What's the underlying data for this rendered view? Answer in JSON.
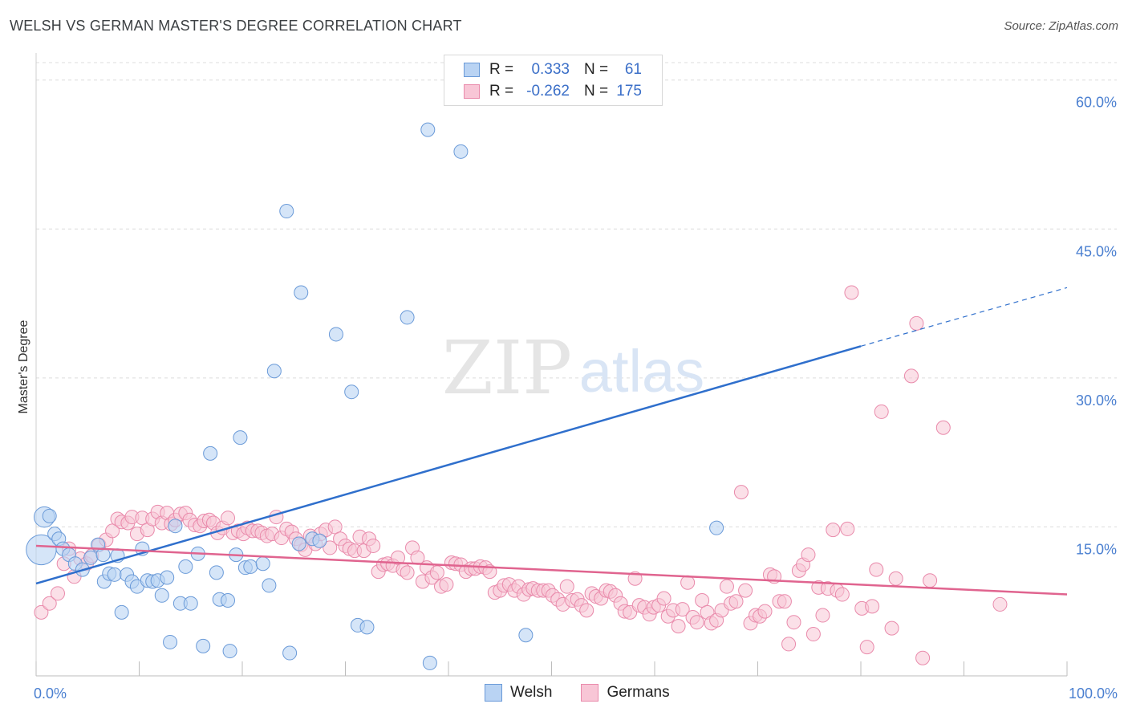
{
  "header": {
    "title": "WELSH VS GERMAN MASTER'S DEGREE CORRELATION CHART",
    "source": "Source: ZipAtlas.com"
  },
  "watermark": {
    "zip": "ZIP",
    "atlas": "atlas"
  },
  "legend": {
    "welsh": {
      "r_label": "R =",
      "r_value": "0.333",
      "n_label": "N =",
      "n_value": "61"
    },
    "germans": {
      "r_label": "R =",
      "r_value": "-0.262",
      "n_label": "N =",
      "n_value": "175"
    }
  },
  "bottom_legend": {
    "welsh": "Welsh",
    "germans": "Germans"
  },
  "colors": {
    "welsh_fill": "#b9d3f3",
    "welsh_stroke": "#6a9ad8",
    "welsh_line": "#2f6fcc",
    "germans_fill": "#f8c6d6",
    "germans_stroke": "#e98aab",
    "germans_line": "#e0648f",
    "tick_text": "#4a7fd0",
    "grid": "#dcdcdc"
  },
  "chart_data": {
    "type": "scatter",
    "title": "WELSH VS GERMAN MASTER'S DEGREE CORRELATION CHART",
    "xlabel": "",
    "ylabel": "Master's Degree",
    "xlim": [
      0,
      100
    ],
    "ylim": [
      0,
      62
    ],
    "x_tick_labels": [
      "0.0%",
      "100.0%"
    ],
    "y_ticks": [
      15,
      30,
      45,
      60
    ],
    "y_tick_labels": [
      "15.0%",
      "30.0%",
      "45.0%",
      "60.0%"
    ],
    "grid": true,
    "legend_position": "top-center",
    "series": [
      {
        "name": "Welsh",
        "r": 0.333,
        "n": 61,
        "trend": {
          "x": [
            0,
            80
          ],
          "y": [
            9.3,
            33.2
          ],
          "extension_to": [
            100,
            39.1
          ]
        },
        "points": [
          [
            0.5,
            12.7,
            2.2
          ],
          [
            0.8,
            16.0,
            1.5
          ],
          [
            1.3,
            16.1,
            1
          ],
          [
            1.8,
            14.3,
            1
          ],
          [
            2.2,
            13.8,
            1
          ],
          [
            2.6,
            12.8,
            1
          ],
          [
            3.2,
            12.2,
            1
          ],
          [
            3.8,
            11.3,
            1
          ],
          [
            4.5,
            10.7,
            1
          ],
          [
            5.3,
            11.9,
            1
          ],
          [
            6.0,
            13.2,
            1
          ],
          [
            6.5,
            12.2,
            1
          ],
          [
            6.6,
            9.5,
            1
          ],
          [
            7.1,
            10.3,
            1
          ],
          [
            7.6,
            10.2,
            1
          ],
          [
            7.9,
            12.1,
            1
          ],
          [
            8.3,
            6.4,
            1
          ],
          [
            8.8,
            10.2,
            1
          ],
          [
            9.3,
            9.5,
            1
          ],
          [
            9.8,
            9.0,
            1
          ],
          [
            10.3,
            12.8,
            1
          ],
          [
            10.8,
            9.6,
            1
          ],
          [
            11.3,
            9.5,
            1
          ],
          [
            11.8,
            9.6,
            1
          ],
          [
            12.2,
            8.1,
            1
          ],
          [
            12.7,
            9.9,
            1
          ],
          [
            13.0,
            3.4,
            1
          ],
          [
            13.5,
            15.1,
            1
          ],
          [
            14.0,
            7.3,
            1
          ],
          [
            14.5,
            11.0,
            1
          ],
          [
            15.0,
            7.3,
            1
          ],
          [
            15.7,
            12.3,
            1
          ],
          [
            16.2,
            3.0,
            1
          ],
          [
            16.9,
            22.4,
            1
          ],
          [
            17.5,
            10.4,
            1
          ],
          [
            17.8,
            7.7,
            1
          ],
          [
            18.6,
            7.6,
            1
          ],
          [
            18.8,
            2.5,
            1
          ],
          [
            19.4,
            12.2,
            1
          ],
          [
            19.8,
            24.0,
            1
          ],
          [
            20.3,
            10.9,
            1
          ],
          [
            20.8,
            11.0,
            1
          ],
          [
            22.0,
            11.3,
            1
          ],
          [
            22.6,
            9.1,
            1
          ],
          [
            23.1,
            30.7,
            1
          ],
          [
            24.3,
            46.8,
            1
          ],
          [
            24.6,
            2.3,
            1
          ],
          [
            25.7,
            38.6,
            1
          ],
          [
            25.5,
            13.3,
            1
          ],
          [
            26.8,
            13.8,
            1
          ],
          [
            27.5,
            13.6,
            1
          ],
          [
            29.1,
            34.4,
            1
          ],
          [
            30.6,
            28.6,
            1
          ],
          [
            31.2,
            5.1,
            1
          ],
          [
            32.1,
            4.9,
            1
          ],
          [
            36.0,
            36.1,
            1
          ],
          [
            38.2,
            1.3,
            1
          ],
          [
            38.0,
            55.0,
            1
          ],
          [
            41.2,
            52.8,
            1
          ],
          [
            47.5,
            4.1,
            1
          ],
          [
            66.0,
            14.9,
            1
          ]
        ]
      },
      {
        "name": "Germans",
        "r": -0.262,
        "n": 175,
        "trend": {
          "x": [
            0,
            100
          ],
          "y": [
            13.1,
            8.2
          ]
        },
        "points": [
          [
            0.5,
            6.4
          ],
          [
            1.3,
            7.3
          ],
          [
            2.1,
            8.3
          ],
          [
            2.7,
            11.3
          ],
          [
            3.2,
            12.8
          ],
          [
            3.7,
            10.0
          ],
          [
            4.3,
            11.8
          ],
          [
            4.9,
            11.3
          ],
          [
            5.4,
            12.1
          ],
          [
            6.1,
            13.2
          ],
          [
            6.8,
            13.7
          ],
          [
            7.4,
            14.6
          ],
          [
            7.9,
            15.8
          ],
          [
            8.3,
            15.5
          ],
          [
            8.9,
            15.4
          ],
          [
            9.3,
            16.0
          ],
          [
            9.8,
            14.3
          ],
          [
            10.3,
            15.9
          ],
          [
            10.8,
            14.7
          ],
          [
            11.3,
            15.8
          ],
          [
            11.8,
            16.5
          ],
          [
            12.2,
            15.4
          ],
          [
            12.7,
            16.4
          ],
          [
            13.1,
            15.3
          ],
          [
            13.5,
            15.7
          ],
          [
            14.0,
            16.3
          ],
          [
            14.5,
            16.4
          ],
          [
            14.9,
            15.7
          ],
          [
            15.4,
            15.2
          ],
          [
            15.9,
            15.1
          ],
          [
            16.3,
            15.6
          ],
          [
            16.8,
            15.7
          ],
          [
            17.2,
            15.4
          ],
          [
            17.6,
            14.4
          ],
          [
            18.1,
            14.9
          ],
          [
            18.6,
            15.9
          ],
          [
            19.1,
            14.4
          ],
          [
            19.6,
            14.6
          ],
          [
            20.1,
            14.3
          ],
          [
            20.5,
            14.9
          ],
          [
            21.0,
            14.6
          ],
          [
            21.5,
            14.6
          ],
          [
            21.9,
            14.4
          ],
          [
            22.4,
            14.1
          ],
          [
            22.9,
            14.3
          ],
          [
            23.3,
            16.0
          ],
          [
            23.8,
            13.9
          ],
          [
            24.3,
            14.8
          ],
          [
            24.8,
            14.5
          ],
          [
            25.2,
            13.8
          ],
          [
            25.7,
            13.2
          ],
          [
            26.1,
            12.7
          ],
          [
            26.6,
            14.1
          ],
          [
            27.1,
            13.3
          ],
          [
            27.6,
            14.3
          ],
          [
            28.1,
            14.7
          ],
          [
            28.5,
            12.9
          ],
          [
            29.0,
            15.0
          ],
          [
            29.5,
            13.8
          ],
          [
            30.0,
            13.1
          ],
          [
            30.4,
            12.8
          ],
          [
            30.9,
            12.6
          ],
          [
            31.4,
            14.0
          ],
          [
            31.8,
            12.6
          ],
          [
            32.3,
            13.8
          ],
          [
            32.7,
            13.1
          ],
          [
            33.2,
            10.5
          ],
          [
            33.7,
            11.2
          ],
          [
            34.1,
            11.3
          ],
          [
            34.6,
            11.1
          ],
          [
            35.1,
            11.9
          ],
          [
            35.6,
            10.7
          ],
          [
            36.0,
            10.4
          ],
          [
            36.5,
            12.9
          ],
          [
            37.0,
            11.9
          ],
          [
            37.5,
            9.5
          ],
          [
            37.9,
            10.9
          ],
          [
            38.4,
            9.9
          ],
          [
            38.9,
            10.4
          ],
          [
            39.3,
            9.0
          ],
          [
            39.8,
            9.2
          ],
          [
            40.3,
            11.4
          ],
          [
            40.7,
            11.3
          ],
          [
            41.2,
            11.2
          ],
          [
            41.7,
            10.5
          ],
          [
            42.2,
            10.8
          ],
          [
            42.6,
            10.8
          ],
          [
            43.1,
            11.0
          ],
          [
            43.6,
            10.9
          ],
          [
            44.0,
            10.5
          ],
          [
            44.5,
            8.4
          ],
          [
            45.0,
            8.6
          ],
          [
            45.4,
            9.1
          ],
          [
            45.9,
            9.2
          ],
          [
            46.4,
            8.6
          ],
          [
            46.8,
            9.0
          ],
          [
            47.3,
            8.2
          ],
          [
            47.8,
            8.7
          ],
          [
            48.2,
            8.8
          ],
          [
            48.7,
            8.6
          ],
          [
            49.2,
            8.6
          ],
          [
            49.7,
            8.6
          ],
          [
            50.1,
            8.1
          ],
          [
            50.6,
            7.7
          ],
          [
            51.1,
            7.2
          ],
          [
            51.5,
            9.0
          ],
          [
            52.0,
            7.6
          ],
          [
            52.5,
            7.7
          ],
          [
            52.9,
            7.1
          ],
          [
            53.4,
            6.6
          ],
          [
            53.9,
            8.3
          ],
          [
            54.3,
            8.0
          ],
          [
            54.8,
            7.8
          ],
          [
            55.3,
            8.6
          ],
          [
            55.7,
            8.5
          ],
          [
            56.2,
            8.1
          ],
          [
            56.7,
            7.3
          ],
          [
            57.1,
            6.5
          ],
          [
            57.6,
            6.4
          ],
          [
            58.1,
            9.8
          ],
          [
            58.5,
            7.1
          ],
          [
            59.0,
            6.9
          ],
          [
            59.5,
            6.2
          ],
          [
            59.9,
            6.9
          ],
          [
            60.4,
            7.1
          ],
          [
            60.9,
            7.8
          ],
          [
            61.3,
            6.0
          ],
          [
            61.8,
            6.6
          ],
          [
            62.3,
            5.0
          ],
          [
            62.7,
            6.7
          ],
          [
            63.2,
            9.4
          ],
          [
            63.7,
            5.9
          ],
          [
            64.1,
            5.4
          ],
          [
            64.6,
            7.6
          ],
          [
            65.1,
            6.4
          ],
          [
            65.5,
            5.3
          ],
          [
            66.0,
            5.6
          ],
          [
            66.5,
            6.6
          ],
          [
            67.0,
            9.0
          ],
          [
            67.4,
            7.3
          ],
          [
            67.9,
            7.5
          ],
          [
            68.4,
            18.5
          ],
          [
            68.8,
            8.6
          ],
          [
            69.3,
            5.3
          ],
          [
            69.8,
            6.1
          ],
          [
            70.2,
            6.0
          ],
          [
            70.7,
            6.5
          ],
          [
            71.2,
            10.2
          ],
          [
            71.6,
            10.0
          ],
          [
            72.1,
            7.5
          ],
          [
            72.6,
            7.5
          ],
          [
            73.0,
            3.2
          ],
          [
            73.5,
            5.4
          ],
          [
            74.0,
            10.6
          ],
          [
            74.4,
            11.2
          ],
          [
            74.9,
            12.2
          ],
          [
            75.4,
            4.2
          ],
          [
            75.9,
            8.9
          ],
          [
            76.3,
            6.1
          ],
          [
            76.8,
            8.8
          ],
          [
            77.3,
            14.7
          ],
          [
            77.7,
            8.6
          ],
          [
            78.2,
            8.2
          ],
          [
            78.7,
            14.8
          ],
          [
            79.1,
            38.6
          ],
          [
            80.1,
            6.8
          ],
          [
            80.6,
            2.9
          ],
          [
            81.1,
            7.0
          ],
          [
            81.5,
            10.7
          ],
          [
            82.0,
            26.6
          ],
          [
            83.0,
            4.8
          ],
          [
            83.4,
            9.8
          ],
          [
            84.9,
            30.2
          ],
          [
            85.4,
            35.5
          ],
          [
            86.0,
            1.8
          ],
          [
            86.7,
            9.6
          ],
          [
            88.0,
            25.0
          ],
          [
            93.5,
            7.2
          ]
        ]
      }
    ]
  }
}
